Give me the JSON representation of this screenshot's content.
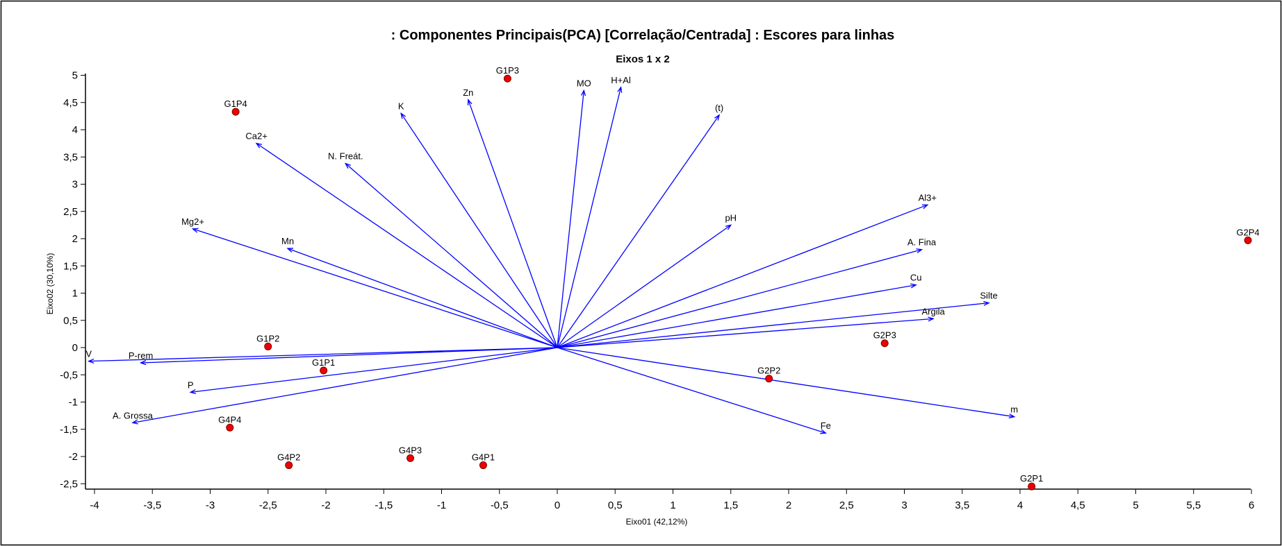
{
  "chart_data": {
    "type": "scatter",
    "title": ": Componentes Principais(PCA) [Correlação/Centrada] : Escores para linhas",
    "subtitle": "Eixos 1 x 2",
    "xlabel": "Eixo01   (42,12%)",
    "ylabel": "Eixo02   (30,10%)",
    "xlim": [
      -4.1,
      6.05
    ],
    "ylim": [
      -2.65,
      5.05
    ],
    "grid": false,
    "x_ticks": [
      -4,
      -3.5,
      -3,
      -2.5,
      -2,
      -1.5,
      -1,
      -0.5,
      0,
      0.5,
      1,
      1.5,
      2,
      2.5,
      3,
      3.5,
      4,
      4.5,
      5,
      5.5,
      6
    ],
    "x_tick_labels": [
      "-4",
      "-3,5",
      "-3",
      "-2,5",
      "-2",
      "-1,5",
      "-1",
      "-0,5",
      "0",
      "0,5",
      "1",
      "1,5",
      "2",
      "2,5",
      "3",
      "3,5",
      "4",
      "4,5",
      "5",
      "5,5",
      "6"
    ],
    "y_ticks": [
      5,
      4.5,
      4,
      3.5,
      3,
      2.5,
      2,
      1.5,
      1,
      0.5,
      0,
      -0.5,
      -1,
      -1.5,
      -2,
      -2.5
    ],
    "y_tick_labels": [
      "5",
      "4,5",
      "4",
      "3,5",
      "3",
      "2,5",
      "2",
      "1,5",
      "1",
      "0,5",
      "0",
      "-0,5",
      "-1",
      "-1,5",
      "-2",
      "-2,5"
    ],
    "colors": {
      "vectors": "#0000ff",
      "points": "#ee0000",
      "point_outline": "#7a0000",
      "text": "#000000"
    },
    "vectors": [
      {
        "label": "Zn",
        "x": -0.77,
        "y": 4.55
      },
      {
        "label": "MO",
        "x": 0.23,
        "y": 4.72
      },
      {
        "label": "H+Al",
        "x": 0.55,
        "y": 4.78
      },
      {
        "label": "(t)",
        "x": 1.4,
        "y": 4.27
      },
      {
        "label": "K",
        "x": -1.35,
        "y": 4.3
      },
      {
        "label": "Ca2+",
        "x": -2.6,
        "y": 3.75
      },
      {
        "label": "N. Freát.",
        "x": -1.83,
        "y": 3.38
      },
      {
        "label": "Mg2+",
        "x": -3.15,
        "y": 2.18
      },
      {
        "label": "Mn",
        "x": -2.33,
        "y": 1.82
      },
      {
        "label": "pH",
        "x": 1.5,
        "y": 2.25
      },
      {
        "label": "Al3+",
        "x": 3.2,
        "y": 2.62
      },
      {
        "label": "A. Fina",
        "x": 3.15,
        "y": 1.8
      },
      {
        "label": "Cu",
        "x": 3.1,
        "y": 1.15
      },
      {
        "label": "Silte",
        "x": 3.73,
        "y": 0.82
      },
      {
        "label": "Argila",
        "x": 3.25,
        "y": 0.53
      },
      {
        "label": "V",
        "x": -4.05,
        "y": -0.25
      },
      {
        "label": "P-rem",
        "x": -3.6,
        "y": -0.28
      },
      {
        "label": "P",
        "x": -3.17,
        "y": -0.82
      },
      {
        "label": "A. Grossa",
        "x": -3.67,
        "y": -1.38
      },
      {
        "label": "m",
        "x": 3.95,
        "y": -1.27
      },
      {
        "label": "Fe",
        "x": 2.32,
        "y": -1.57
      }
    ],
    "points": [
      {
        "label": "G1P3",
        "x": -0.43,
        "y": 4.94
      },
      {
        "label": "G1P4",
        "x": -2.78,
        "y": 4.33
      },
      {
        "label": "G1P2",
        "x": -2.5,
        "y": 0.02
      },
      {
        "label": "G1P1",
        "x": -2.02,
        "y": -0.42
      },
      {
        "label": "G4P4",
        "x": -2.83,
        "y": -1.47
      },
      {
        "label": "G4P2",
        "x": -2.32,
        "y": -2.16
      },
      {
        "label": "G4P3",
        "x": -1.27,
        "y": -2.03
      },
      {
        "label": "G4P1",
        "x": -0.64,
        "y": -2.16
      },
      {
        "label": "G2P2",
        "x": 1.83,
        "y": -0.57
      },
      {
        "label": "G2P3",
        "x": 2.83,
        "y": 0.08
      },
      {
        "label": "G2P4",
        "x": 5.97,
        "y": 1.97
      },
      {
        "label": "G2P1",
        "x": 4.1,
        "y": -2.55
      }
    ]
  }
}
